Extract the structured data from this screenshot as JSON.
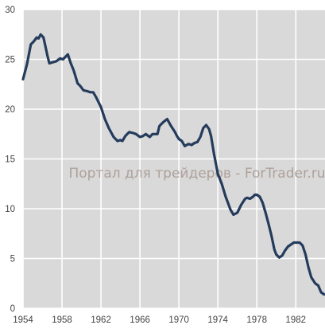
{
  "chart_data": {
    "type": "line",
    "title": "",
    "xlabel": "",
    "ylabel": "",
    "xlim": [
      1954,
      1985
    ],
    "ylim": [
      0,
      30
    ],
    "x_ticks": [
      1954,
      1958,
      1962,
      1966,
      1970,
      1974,
      1978,
      1982
    ],
    "y_ticks": [
      0,
      5,
      10,
      15,
      20,
      25,
      30
    ],
    "grid": true,
    "legend": "none",
    "colors": {
      "plot_background": "#d9d9d9",
      "grid": "#ffffff",
      "line": "#243b5c"
    },
    "series": [
      {
        "x": [
          1954.0,
          1954.4,
          1954.8,
          1955.1,
          1955.4,
          1955.6,
          1955.8,
          1956.1,
          1956.3,
          1956.5,
          1956.7,
          1957.0,
          1957.4,
          1957.8,
          1958.1,
          1958.4,
          1958.6,
          1958.9,
          1959.2,
          1959.6,
          1959.9,
          1960.2,
          1960.6,
          1960.9,
          1961.2,
          1961.5,
          1962.0,
          1962.4,
          1962.8,
          1963.3,
          1963.7,
          1964.0,
          1964.2,
          1964.5,
          1964.9,
          1965.3,
          1965.6,
          1966.0,
          1966.3,
          1966.6,
          1967.0,
          1967.3,
          1967.8,
          1968.0,
          1968.4,
          1968.8,
          1969.2,
          1969.6,
          1969.8,
          1970.0,
          1970.3,
          1970.6,
          1971.0,
          1971.3,
          1971.6,
          1971.9,
          1972.2,
          1972.5,
          1972.8,
          1973.1,
          1973.3,
          1973.6,
          1974.0,
          1974.4,
          1974.8,
          1975.0,
          1975.3,
          1975.6,
          1976.0,
          1976.4,
          1976.8,
          1977.0,
          1977.3,
          1977.6,
          1977.8,
          1978.0,
          1978.3,
          1978.6,
          1978.9,
          1979.2,
          1979.5,
          1979.8,
          1980.0,
          1980.3,
          1980.6,
          1980.9,
          1981.2,
          1981.5,
          1981.8,
          1982.1,
          1982.4,
          1982.7,
          1983.0,
          1983.3,
          1983.6,
          1984.0,
          1984.3,
          1984.6,
          1984.9
        ],
        "values": [
          23.0,
          24.5,
          26.5,
          26.8,
          27.2,
          27.1,
          27.5,
          27.2,
          26.3,
          25.4,
          24.6,
          24.7,
          24.8,
          25.1,
          25.0,
          25.3,
          25.5,
          24.6,
          23.9,
          22.6,
          22.3,
          21.9,
          21.8,
          21.7,
          21.7,
          21.2,
          20.2,
          19.0,
          18.1,
          17.2,
          16.8,
          16.9,
          16.8,
          17.3,
          17.7,
          17.6,
          17.5,
          17.2,
          17.3,
          17.5,
          17.2,
          17.5,
          17.5,
          18.3,
          18.7,
          19.0,
          18.3,
          17.7,
          17.3,
          17.0,
          16.8,
          16.3,
          16.5,
          16.4,
          16.6,
          16.7,
          17.2,
          18.1,
          18.4,
          18.0,
          17.3,
          15.5,
          13.5,
          12.5,
          11.2,
          10.7,
          9.9,
          9.4,
          9.6,
          10.4,
          11.0,
          11.1,
          11.0,
          11.2,
          11.4,
          11.4,
          11.2,
          10.6,
          9.6,
          8.5,
          7.3,
          5.9,
          5.4,
          5.1,
          5.3,
          5.8,
          6.2,
          6.4,
          6.6,
          6.6,
          6.6,
          6.3,
          5.4,
          4.1,
          3.1,
          2.5,
          2.3,
          1.6,
          1.4
        ]
      }
    ],
    "watermark": "Портал для трейдеров - ForTrader.ru"
  }
}
